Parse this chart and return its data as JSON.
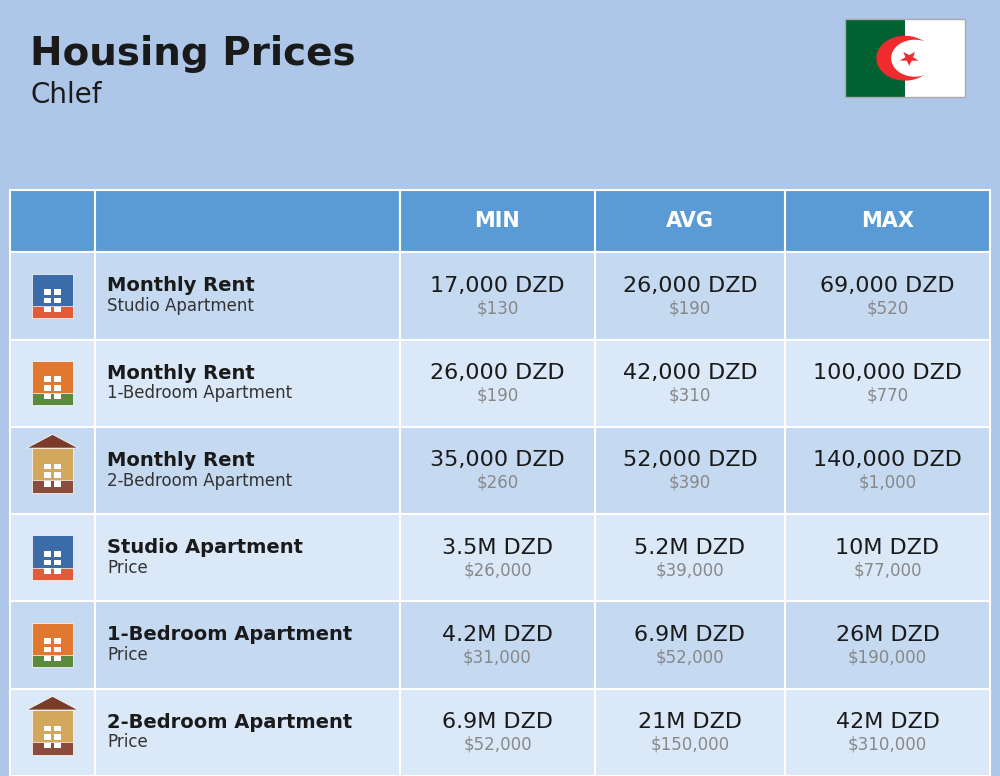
{
  "title": "Housing Prices",
  "subtitle": "Chlef",
  "background_color": "#aec6e8",
  "header_color": "#5b9bd5",
  "header_text_color": "#ffffff",
  "row_bg_color_1": "#c5d9f1",
  "row_bg_color_2": "#dae8f8",
  "icon_col_color": "#aec6e8",
  "col_headers": [
    "MIN",
    "AVG",
    "MAX"
  ],
  "rows": [
    {
      "label_bold": "Monthly Rent",
      "label_sub": "Studio Apartment",
      "icon_type": "blue_building",
      "min_main": "17,000 DZD",
      "min_sub": "$130",
      "avg_main": "26,000 DZD",
      "avg_sub": "$190",
      "max_main": "69,000 DZD",
      "max_sub": "$520"
    },
    {
      "label_bold": "Monthly Rent",
      "label_sub": "1-Bedroom Apartment",
      "icon_type": "orange_building",
      "min_main": "26,000 DZD",
      "min_sub": "$190",
      "avg_main": "42,000 DZD",
      "avg_sub": "$310",
      "max_main": "100,000 DZD",
      "max_sub": "$770"
    },
    {
      "label_bold": "Monthly Rent",
      "label_sub": "2-Bedroom Apartment",
      "icon_type": "house_building",
      "min_main": "35,000 DZD",
      "min_sub": "$260",
      "avg_main": "52,000 DZD",
      "avg_sub": "$390",
      "max_main": "140,000 DZD",
      "max_sub": "$1,000"
    },
    {
      "label_bold": "Studio Apartment",
      "label_sub": "Price",
      "icon_type": "blue_building2",
      "min_main": "3.5M DZD",
      "min_sub": "$26,000",
      "avg_main": "5.2M DZD",
      "avg_sub": "$39,000",
      "max_main": "10M DZD",
      "max_sub": "$77,000"
    },
    {
      "label_bold": "1-Bedroom Apartment",
      "label_sub": "Price",
      "icon_type": "orange_building2",
      "min_main": "4.2M DZD",
      "min_sub": "$31,000",
      "avg_main": "6.9M DZD",
      "avg_sub": "$52,000",
      "max_main": "26M DZD",
      "max_sub": "$190,000"
    },
    {
      "label_bold": "2-Bedroom Apartment",
      "label_sub": "Price",
      "icon_type": "house_building2",
      "min_main": "6.9M DZD",
      "min_sub": "$52,000",
      "avg_main": "21M DZD",
      "avg_sub": "$150,000",
      "max_main": "42M DZD",
      "max_sub": "$310,000"
    }
  ],
  "title_fontsize": 28,
  "subtitle_fontsize": 20,
  "header_fontsize": 15,
  "cell_main_fontsize": 16,
  "cell_sub_fontsize": 12,
  "label_bold_fontsize": 14,
  "label_sub_fontsize": 12
}
